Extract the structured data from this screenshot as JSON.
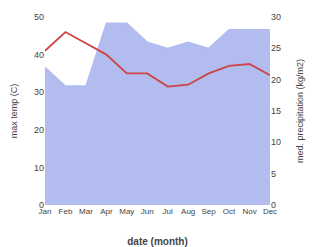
{
  "chart_data": {
    "type": "line",
    "categories": [
      "Jan",
      "Feb",
      "Mar",
      "Apr",
      "May",
      "Jun",
      "Jul",
      "Aug",
      "Sep",
      "Oct",
      "Nov",
      "Dec"
    ],
    "series": [
      {
        "type": "area",
        "axis": "y2",
        "color": "#b3bcee",
        "values": [
          22,
          19,
          19,
          29,
          29,
          26,
          25,
          26,
          25,
          28,
          28,
          28
        ]
      },
      {
        "type": "line",
        "color": "#cc4444",
        "values": [
          41,
          46,
          43,
          40,
          35,
          35,
          31.5,
          32,
          35,
          37,
          37.5,
          34.5
        ]
      }
    ],
    "xlabel": "date (month)",
    "ylabel": "max temp (C)",
    "y2label": "med. precipitation (kg/m2)",
    "ylim": [
      0,
      50
    ],
    "yticks": [
      0,
      10,
      20,
      30,
      40,
      50
    ],
    "y2lim": [
      0,
      30
    ],
    "y2ticks": [
      0,
      5,
      10,
      15,
      20,
      25,
      30
    ],
    "grid": false
  }
}
